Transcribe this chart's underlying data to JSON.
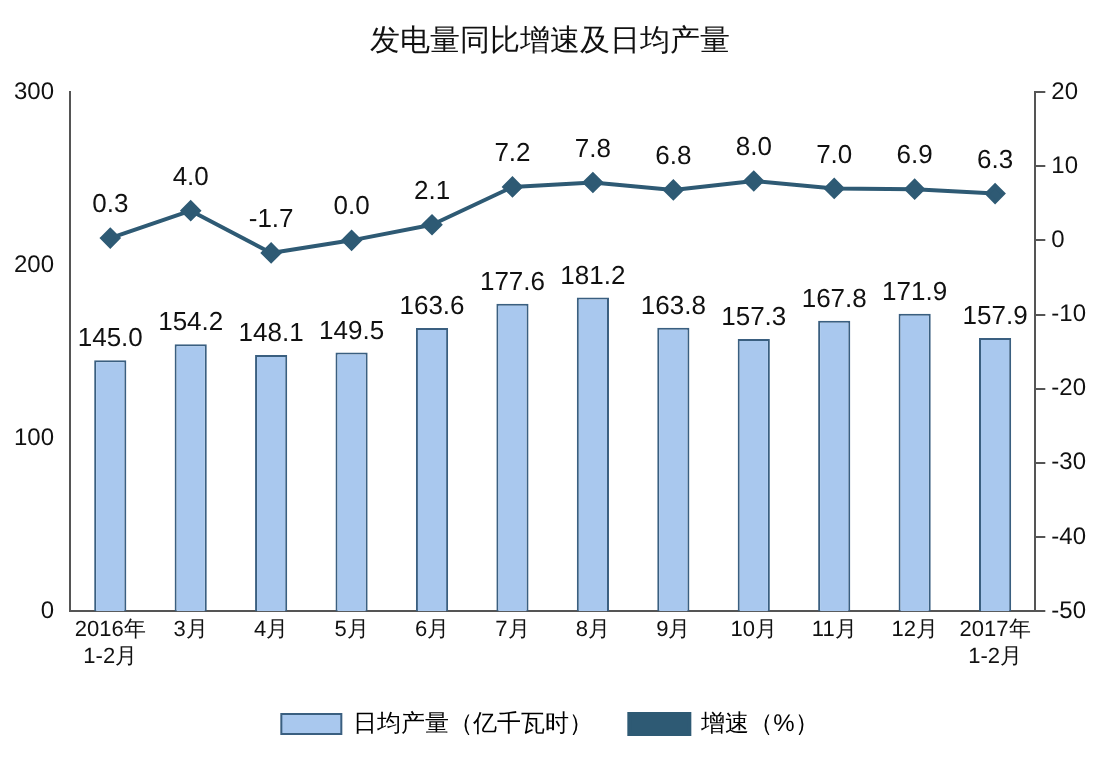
{
  "chart_data": {
    "type": "bar",
    "title": "发电量同比增速及日均产量",
    "categories": [
      "2016年\n1-2月",
      "3月",
      "4月",
      "5月",
      "6月",
      "7月",
      "8月",
      "9月",
      "10月",
      "11月",
      "12月",
      "2017年\n1-2月"
    ],
    "series": [
      {
        "name": "日均产量（亿千瓦时）",
        "color": "#a9c8ee",
        "values": [
          145.0,
          154.2,
          148.1,
          149.5,
          163.6,
          177.6,
          181.2,
          163.8,
          157.3,
          167.8,
          171.9,
          157.9
        ],
        "value_labels": [
          "145.0",
          "154.2",
          "148.1",
          "149.5",
          "163.6",
          "177.6",
          "181.2",
          "163.8",
          "157.3",
          "167.8",
          "171.9",
          "157.9"
        ]
      },
      {
        "name": "增速（%）",
        "type": "line",
        "axis": "y2",
        "color": "#2e5a74",
        "values": [
          0.3,
          4.0,
          -1.7,
          0.0,
          2.1,
          7.2,
          7.8,
          6.8,
          8.0,
          7.0,
          6.9,
          6.3
        ],
        "value_labels": [
          "0.3",
          "4.0",
          "-1.7",
          "0.0",
          "2.1",
          "7.2",
          "7.8",
          "6.8",
          "8.0",
          "7.0",
          "6.9",
          "6.3"
        ]
      }
    ],
    "ylim": [
      0,
      300
    ],
    "yticks": [
      0,
      100,
      200,
      300
    ],
    "y2lim": [
      -50,
      20
    ],
    "y2ticks": [
      -50,
      -40,
      -30,
      -20,
      -10,
      0,
      10,
      20
    ],
    "grid": false,
    "legend": "bottom",
    "marker": "diamond",
    "line_style": "solid"
  }
}
